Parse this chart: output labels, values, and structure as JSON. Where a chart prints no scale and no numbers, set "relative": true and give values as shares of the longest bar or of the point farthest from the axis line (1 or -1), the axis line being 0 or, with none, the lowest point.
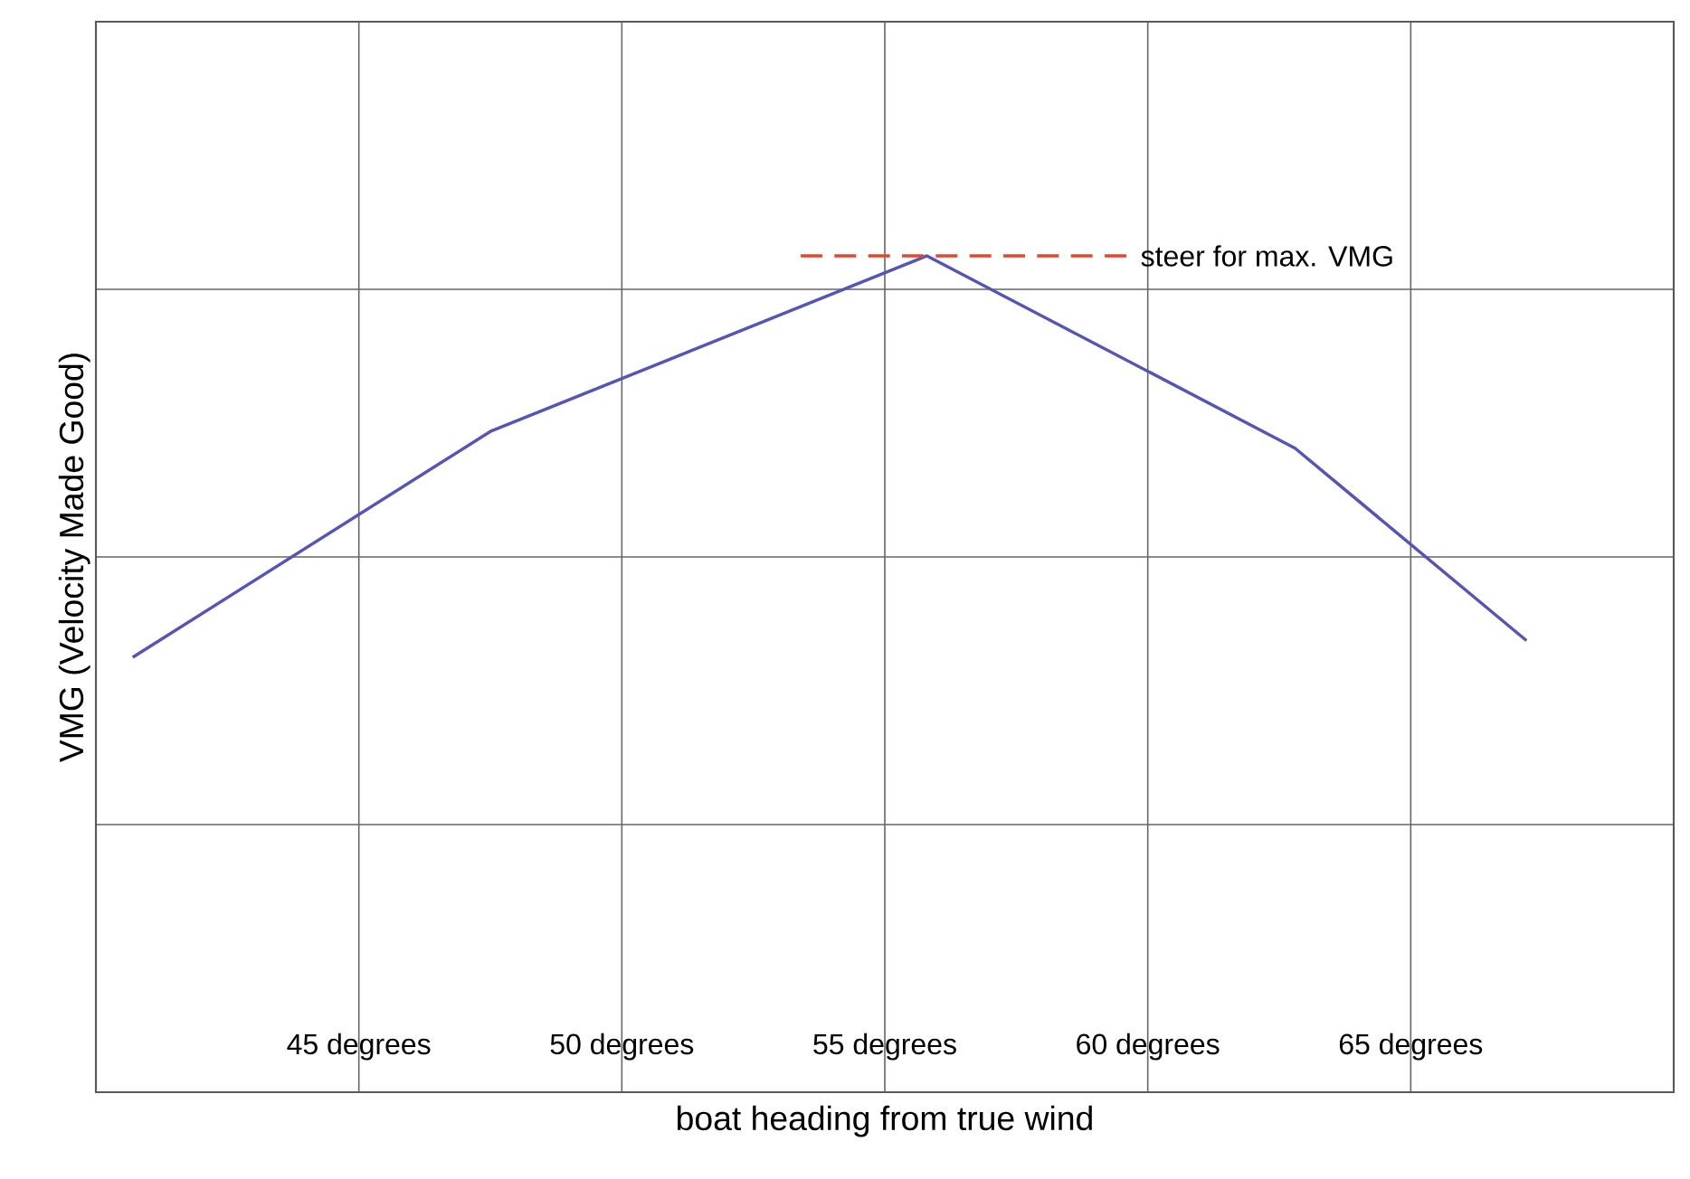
{
  "chart_data": {
    "type": "line",
    "relative": true,
    "xlabel": "boat heading from true wind",
    "ylabel": "VMG (Velocity Made Good)",
    "xlim": [
      40,
      70
    ],
    "xticks": [
      {
        "value": 45,
        "label": "45 degrees"
      },
      {
        "value": 50,
        "label": "50 degrees"
      },
      {
        "value": 55,
        "label": "55 degrees"
      },
      {
        "value": 60,
        "label": "60 degrees"
      },
      {
        "value": 65,
        "label": "65 degrees"
      }
    ],
    "grid": true,
    "marker": "none",
    "series": [
      {
        "x": [
          40.7,
          47.5,
          55.8,
          62.8,
          67.2
        ],
        "values": [
          0.52,
          0.79,
          1,
          0.77,
          0.54
        ],
        "color": "#5555b5",
        "line_style": "solid"
      },
      {
        "name": "steer for max. VMG",
        "x": [
          53.4,
          59.7
        ],
        "values": [
          1,
          1
        ],
        "color": "#e8452e",
        "line_style": "dashed"
      }
    ]
  }
}
